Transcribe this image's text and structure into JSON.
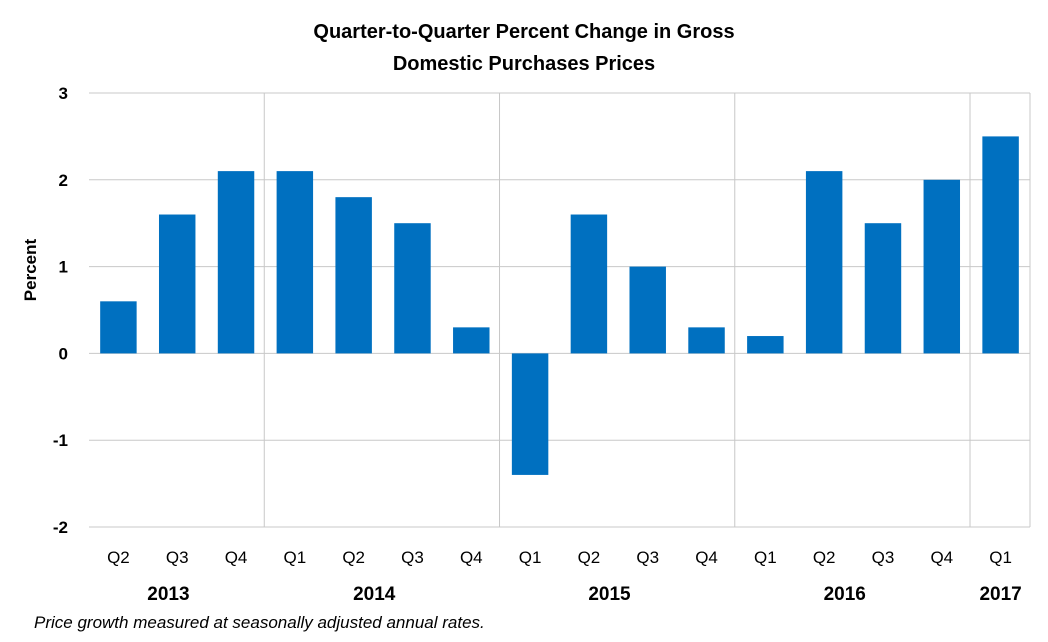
{
  "chart_data": {
    "type": "bar",
    "title_lines": [
      "Quarter-to-Quarter Percent Change in Gross",
      "Domestic Purchases Prices"
    ],
    "ylabel": "Percent",
    "ylim": [
      -2,
      3
    ],
    "yticks": [
      "3",
      "2",
      "1",
      "0",
      "-1",
      "-2"
    ],
    "ytick_values": [
      3,
      2,
      1,
      0,
      -1,
      -2
    ],
    "grid": true,
    "bar_color": "#0070c0",
    "categories": [
      "Q2",
      "Q3",
      "Q4",
      "Q1",
      "Q2",
      "Q3",
      "Q4",
      "Q1",
      "Q2",
      "Q3",
      "Q4",
      "Q1",
      "Q2",
      "Q3",
      "Q4",
      "Q1"
    ],
    "values": [
      0.6,
      1.6,
      2.1,
      2.1,
      1.8,
      1.5,
      0.3,
      -1.4,
      1.6,
      1.0,
      0.3,
      0.2,
      2.1,
      1.5,
      2.0,
      2.5
    ],
    "years": [
      {
        "label": "2013",
        "count": 3
      },
      {
        "label": "2014",
        "count": 4
      },
      {
        "label": "2015",
        "count": 4
      },
      {
        "label": "2016",
        "count": 4
      },
      {
        "label": "2017",
        "count": 1
      }
    ]
  },
  "footnote": "Price growth measured at seasonally adjusted annual rates."
}
